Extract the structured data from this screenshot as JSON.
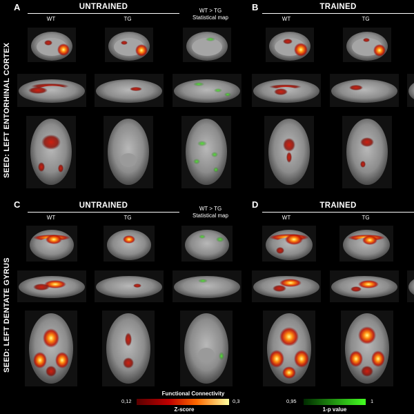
{
  "panels": {
    "A": {
      "letter": "A",
      "title": "UNTRAINED",
      "col_wt": "WT",
      "col_tg": "TG",
      "stat_line1": "WT > TG",
      "stat_line2": "Statistical map"
    },
    "B": {
      "letter": "B",
      "title": "TRAINED",
      "col_wt": "WT",
      "col_tg": "TG"
    },
    "C": {
      "letter": "C",
      "title": "UNTRAINED",
      "col_wt": "WT",
      "col_tg": "TG",
      "stat_line1": "WT > TG",
      "stat_line2": "Statistical map"
    },
    "D": {
      "letter": "D",
      "title": "TRAINED",
      "col_wt": "WT",
      "col_tg": "TG"
    }
  },
  "seeds": {
    "top": "SEED: LEFT ENTORHINAL CORTEX",
    "bottom": "SEED: LEFT DENTATE GYRUS"
  },
  "legend": {
    "fc": {
      "title": "Functional Connectivity",
      "min": "0,12",
      "max": "0,3",
      "unit": "Z-score"
    },
    "p": {
      "min": "0,95",
      "max": "1",
      "unit": "1-p value"
    }
  },
  "colors": {
    "heat_low": "#7a0000",
    "heat_mid": "#ff3a00",
    "heat_high": "#ffff66",
    "stat_low": "#003a00",
    "stat_high": "#44dd22"
  }
}
